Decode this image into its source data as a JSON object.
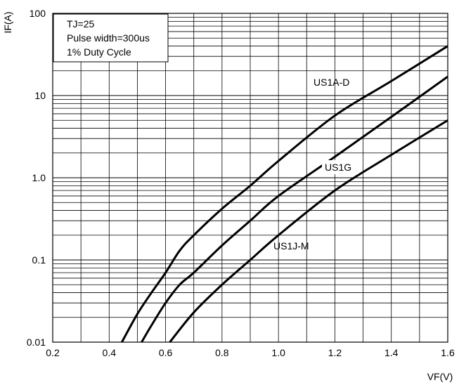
{
  "chart_data": {
    "type": "line",
    "xlabel": "VF(V)",
    "ylabel": "IF(A)",
    "y_scale": "log",
    "xlim": [
      0.2,
      1.6
    ],
    "ylim": [
      0.01,
      100
    ],
    "x_ticks": [
      "0.2",
      "0.4",
      "0.6",
      "0.8",
      "1.0",
      "1.2",
      "1.4",
      "1.6"
    ],
    "y_ticks": [
      "0.01",
      "0.1",
      "1.0",
      "10",
      "100"
    ],
    "grid": true,
    "annotations": [
      "TJ=25",
      "Pulse width=300us",
      "1% Duty Cycle"
    ],
    "series": [
      {
        "name": "US1A-D",
        "x": [
          0.445,
          0.5,
          0.55,
          0.6,
          0.65,
          0.7,
          0.8,
          0.9,
          1.0,
          1.2,
          1.4,
          1.6
        ],
        "y": [
          0.01,
          0.022,
          0.04,
          0.07,
          0.13,
          0.2,
          0.42,
          0.8,
          1.6,
          5.7,
          15,
          40
        ]
      },
      {
        "name": "US1G",
        "x": [
          0.515,
          0.55,
          0.6,
          0.65,
          0.7,
          0.8,
          0.9,
          1.0,
          1.2,
          1.4,
          1.6
        ],
        "y": [
          0.01,
          0.016,
          0.03,
          0.05,
          0.07,
          0.15,
          0.3,
          0.6,
          1.8,
          5.5,
          17
        ]
      },
      {
        "name": "US1J-M",
        "x": [
          0.615,
          0.7,
          0.8,
          0.9,
          1.0,
          1.2,
          1.4,
          1.6
        ],
        "y": [
          0.01,
          0.023,
          0.05,
          0.1,
          0.2,
          0.7,
          1.9,
          5
        ]
      }
    ]
  }
}
